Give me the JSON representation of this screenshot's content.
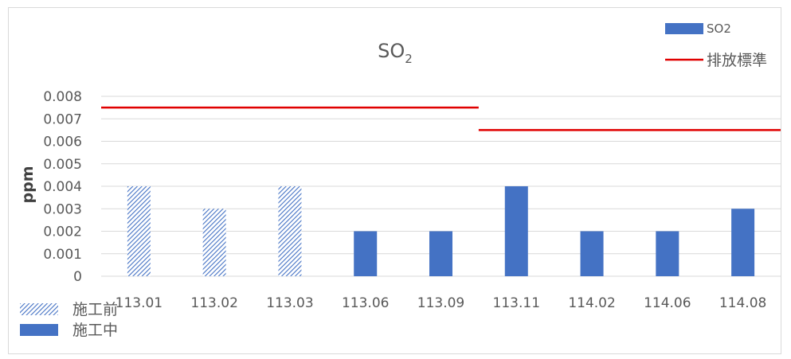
{
  "chart_data": {
    "type": "bar",
    "title": "SO",
    "title_subscript": "2",
    "ylabel": "ppm",
    "xlabel": "",
    "ylim": [
      0,
      0.008
    ],
    "yticks": [
      "0",
      "0.001",
      "0.002",
      "0.003",
      "0.004",
      "0.005",
      "0.006",
      "0.007",
      "0.008"
    ],
    "grid": true,
    "categories": [
      "113.01",
      "113.02",
      "113.03",
      "113.06",
      "113.09",
      "113.11",
      "114.02",
      "114.06",
      "114.08"
    ],
    "series": [
      {
        "name": "SO2",
        "values": [
          0.004,
          0.003,
          0.004,
          0.002,
          0.002,
          0.004,
          0.002,
          0.002,
          0.003
        ],
        "phase": [
          "施工前",
          "施工前",
          "施工前",
          "施工中",
          "施工中",
          "施工中",
          "施工中",
          "施工中",
          "施工中"
        ]
      }
    ],
    "standard": {
      "name": "排放標準",
      "segments": [
        {
          "from": "113.01",
          "to": "113.09",
          "value": 0.0075
        },
        {
          "from": "113.11",
          "to": "114.08",
          "value": 0.0065
        }
      ]
    },
    "phase_legend": [
      {
        "label": "施工前",
        "style": "hatched"
      },
      {
        "label": "施工中",
        "style": "solid"
      }
    ],
    "colors": {
      "bar": "#4472c4",
      "standard": "#e00000",
      "grid": "#d9d9d9",
      "text": "#595959"
    },
    "legend_position": "top-right"
  }
}
